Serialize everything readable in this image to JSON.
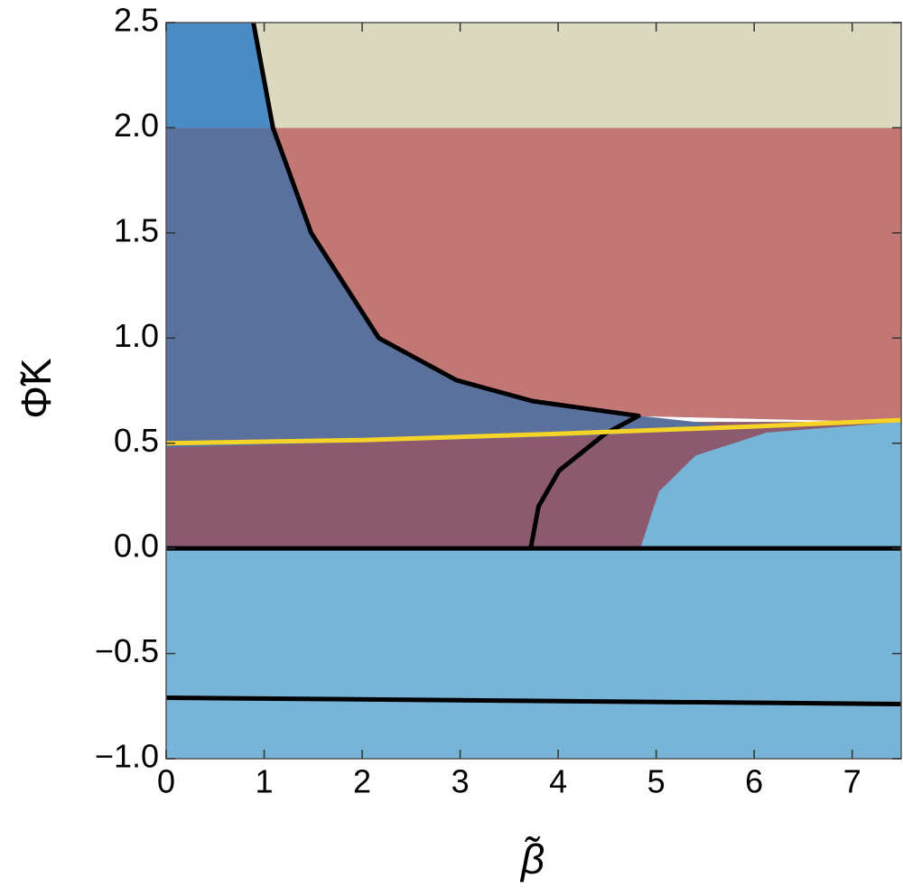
{
  "chart_data": {
    "type": "region",
    "x_label": "β̃",
    "y_label": "Φ̃K",
    "xlim": [
      0,
      7.5
    ],
    "ylim": [
      -1.0,
      2.5
    ],
    "xticks": [
      0,
      1,
      2,
      3,
      4,
      5,
      6,
      7
    ],
    "yticks": [
      {
        "value": -1.0,
        "label": "−1.0"
      },
      {
        "value": -0.5,
        "label": "−0.5"
      },
      {
        "value": 0,
        "label": "0.0"
      },
      0.5,
      {
        "value": 1.0,
        "label": "1.0"
      },
      1.5,
      {
        "value": 2.0,
        "label": "2.0"
      },
      2.5
    ],
    "regions": [
      {
        "color": "#76b4d8",
        "x": [
          0,
          7.5,
          7.5,
          0
        ],
        "values": [
          -1.0,
          -1.0,
          0,
          0
        ]
      },
      {
        "color": "#8b5a6f",
        "x": [
          0,
          7.5,
          7.5,
          0
        ],
        "values": [
          0,
          0,
          0.6,
          0.6
        ]
      },
      {
        "color": "#5a719e",
        "x": [
          0,
          0,
          1.09,
          1.48,
          2.17,
          2.96,
          3.74,
          4.82,
          5.6,
          4.5,
          0
        ],
        "values": [
          0.48,
          2.0,
          2.0,
          1.5,
          1.0,
          0.8,
          0.7,
          0.63,
          0.59,
          0.54,
          0.48
        ]
      },
      {
        "color": "#c37775",
        "x": [
          1.09,
          7.5,
          7.5,
          4.82,
          3.74,
          2.96,
          2.17,
          1.48
        ],
        "values": [
          2.0,
          2.0,
          0.6,
          0.63,
          0.7,
          0.8,
          1.0,
          1.5
        ]
      },
      {
        "color": "#dcd9c1",
        "x": [
          0.89,
          7.5,
          7.5,
          1.09
        ],
        "values": [
          2.5,
          2.5,
          2.0,
          2.0
        ]
      },
      {
        "color": "#4b8bc3",
        "x": [
          0,
          0,
          0.89,
          1.09
        ],
        "values": [
          2.0,
          2.5,
          2.5,
          2.0
        ]
      },
      {
        "color": "#76b4d8",
        "x": [
          4.84,
          7.5,
          7.5,
          6.13,
          5.4,
          5.03
        ],
        "values": [
          0,
          0,
          0.6,
          0.55,
          0.44,
          0.27
        ]
      }
    ],
    "series": [
      {
        "color": "#000000",
        "x": [
          0.89,
          1.09,
          1.48,
          2.17,
          2.96,
          3.74,
          4.82,
          4.48,
          4.01,
          3.8,
          3.72
        ],
        "values": [
          2.5,
          2.0,
          1.5,
          1.0,
          0.8,
          0.7,
          0.63,
          0.545,
          0.37,
          0.2,
          0
        ]
      },
      {
        "color": "#f5d327",
        "x": [
          0,
          2,
          4,
          6,
          7.5
        ],
        "values": [
          0.5,
          0.515,
          0.545,
          0.58,
          0.61
        ]
      },
      {
        "color": "#000000",
        "x": [
          0,
          7.5
        ],
        "values": [
          0,
          0
        ]
      },
      {
        "color": "#000000",
        "x": [
          0,
          7.5
        ],
        "values": [
          -0.71,
          -0.74
        ]
      }
    ]
  }
}
